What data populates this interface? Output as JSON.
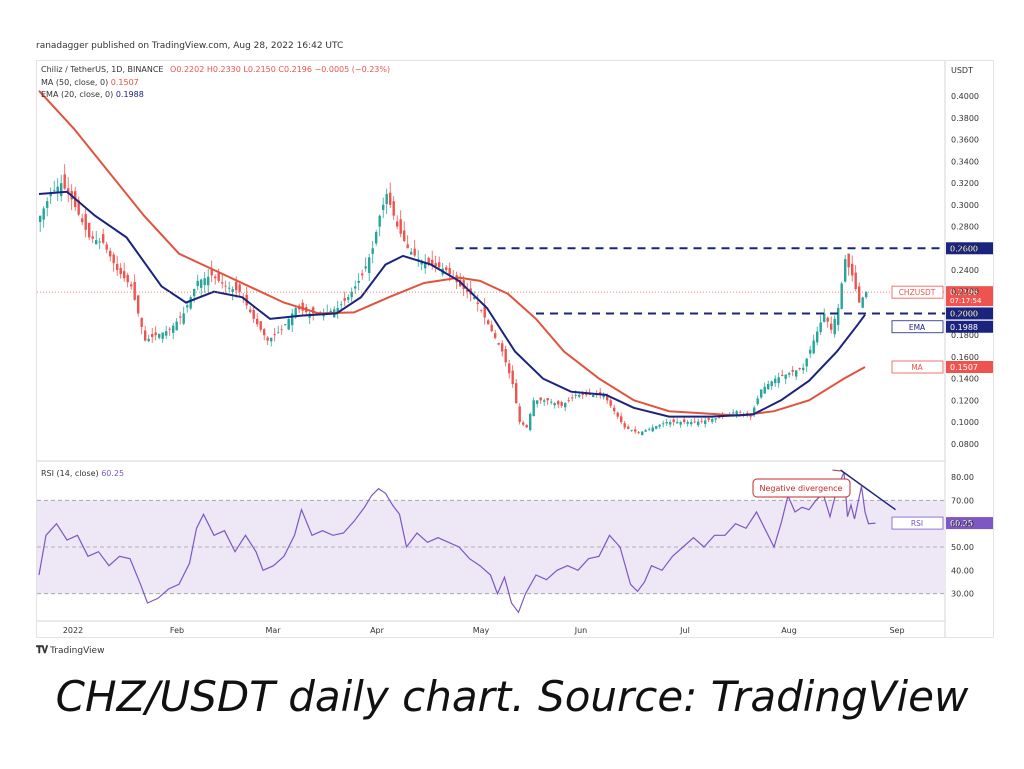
{
  "header_text": "ranadagger published on TradingView.com, Aug 28, 2022 16:42 UTC",
  "legend": {
    "symbol_line": "Chiliz / TetherUS, 1D, BINANCE",
    "ohlc": "O0.2202  H0.2330  L0.2150  C0.2196  −0.0005 (−0.23%)",
    "ma_label": "MA (50, close, 0)",
    "ma_value": "0.1507",
    "ema_label": "EMA (20, close, 0)",
    "ema_value": "0.1988",
    "rsi_label": "RSI (14, close)",
    "rsi_value": "60.25"
  },
  "price_badges": {
    "symbol": "CHZUSDT",
    "last": "0.2196",
    "countdown": "07:17:54",
    "resistance": "0.2600",
    "support": "0.2000",
    "ema_tag": "EMA",
    "ema": "0.1988",
    "ma_tag": "MA",
    "ma": "0.1507",
    "rsi_tag": "RSI",
    "rsi": "60.25"
  },
  "annotation": "Negative divergence",
  "tv_logo": "TradingView",
  "caption": "CHZ/USDT daily chart. Source: TradingView",
  "colors": {
    "up": "#26a69a",
    "down": "#ef5350",
    "ma": "#e0533d",
    "ema": "#1a237e",
    "rsi": "#7e57c2",
    "line": "#1a237e"
  },
  "chart_data": {
    "type": "candlestick",
    "price_axis": {
      "label": "USDT",
      "ticks": [
        "0.4000",
        "0.3800",
        "0.3600",
        "0.3400",
        "0.3200",
        "0.3000",
        "0.2800",
        "0.2600",
        "0.2400",
        "0.2200",
        "0.2000",
        "0.1800",
        "0.1600",
        "0.1400",
        "0.1200",
        "0.1000",
        "0.0800"
      ],
      "range": [
        0.066,
        0.414
      ]
    },
    "rsi_axis": {
      "ticks": [
        "80.00",
        "70.00",
        "60.00",
        "50.00",
        "40.00",
        "30.00"
      ],
      "range": [
        20,
        86
      ],
      "band": [
        30,
        70
      ]
    },
    "x_labels": [
      "2022",
      "Feb",
      "Mar",
      "Apr",
      "May",
      "Jun",
      "Jul",
      "Aug",
      "Sep"
    ],
    "horizontal_levels": [
      {
        "price": 0.26,
        "from_day": 119,
        "to_day": 235
      },
      {
        "price": 0.2,
        "from_day": 142,
        "to_day": 235
      }
    ],
    "rsi_trendline": {
      "from": [
        229,
        83
      ],
      "to": [
        239,
        66
      ]
    },
    "close": [
      {
        "d": 0,
        "p": 0.29
      },
      {
        "d": 3,
        "p": 0.31
      },
      {
        "d": 6,
        "p": 0.32
      },
      {
        "d": 9,
        "p": 0.305
      },
      {
        "d": 14,
        "p": 0.27
      },
      {
        "d": 18,
        "p": 0.265
      },
      {
        "d": 22,
        "p": 0.24
      },
      {
        "d": 26,
        "p": 0.225
      },
      {
        "d": 30,
        "p": 0.175
      },
      {
        "d": 33,
        "p": 0.18
      },
      {
        "d": 37,
        "p": 0.185
      },
      {
        "d": 41,
        "p": 0.2
      },
      {
        "d": 45,
        "p": 0.23
      },
      {
        "d": 49,
        "p": 0.235
      },
      {
        "d": 53,
        "p": 0.225
      },
      {
        "d": 57,
        "p": 0.22
      },
      {
        "d": 61,
        "p": 0.195
      },
      {
        "d": 65,
        "p": 0.175
      },
      {
        "d": 69,
        "p": 0.185
      },
      {
        "d": 73,
        "p": 0.205
      },
      {
        "d": 77,
        "p": 0.2
      },
      {
        "d": 81,
        "p": 0.2
      },
      {
        "d": 85,
        "p": 0.205
      },
      {
        "d": 88,
        "p": 0.215
      },
      {
        "d": 92,
        "p": 0.235
      },
      {
        "d": 95,
        "p": 0.26
      },
      {
        "d": 97,
        "p": 0.29
      },
      {
        "d": 99,
        "p": 0.31
      },
      {
        "d": 102,
        "p": 0.28
      },
      {
        "d": 105,
        "p": 0.26
      },
      {
        "d": 108,
        "p": 0.25
      },
      {
        "d": 112,
        "p": 0.245
      },
      {
        "d": 116,
        "p": 0.24
      },
      {
        "d": 120,
        "p": 0.225
      },
      {
        "d": 124,
        "p": 0.215
      },
      {
        "d": 128,
        "p": 0.19
      },
      {
        "d": 132,
        "p": 0.165
      },
      {
        "d": 135,
        "p": 0.135
      },
      {
        "d": 137,
        "p": 0.1
      },
      {
        "d": 139,
        "p": 0.095
      },
      {
        "d": 141,
        "p": 0.12
      },
      {
        "d": 145,
        "p": 0.12
      },
      {
        "d": 149,
        "p": 0.115
      },
      {
        "d": 153,
        "p": 0.125
      },
      {
        "d": 157,
        "p": 0.125
      },
      {
        "d": 161,
        "p": 0.125
      },
      {
        "d": 164,
        "p": 0.11
      },
      {
        "d": 167,
        "p": 0.095
      },
      {
        "d": 171,
        "p": 0.09
      },
      {
        "d": 175,
        "p": 0.095
      },
      {
        "d": 179,
        "p": 0.1
      },
      {
        "d": 183,
        "p": 0.1
      },
      {
        "d": 187,
        "p": 0.1
      },
      {
        "d": 191,
        "p": 0.102
      },
      {
        "d": 195,
        "p": 0.105
      },
      {
        "d": 199,
        "p": 0.11
      },
      {
        "d": 203,
        "p": 0.105
      },
      {
        "d": 206,
        "p": 0.13
      },
      {
        "d": 210,
        "p": 0.14
      },
      {
        "d": 214,
        "p": 0.145
      },
      {
        "d": 218,
        "p": 0.15
      },
      {
        "d": 221,
        "p": 0.175
      },
      {
        "d": 224,
        "p": 0.2
      },
      {
        "d": 226,
        "p": 0.185
      },
      {
        "d": 228,
        "p": 0.205
      },
      {
        "d": 230,
        "p": 0.25
      },
      {
        "d": 232,
        "p": 0.235
      },
      {
        "d": 234,
        "p": 0.21
      },
      {
        "d": 236,
        "p": 0.2196
      }
    ],
    "ema20": [
      {
        "d": 0,
        "p": 0.31
      },
      {
        "d": 8,
        "p": 0.312
      },
      {
        "d": 16,
        "p": 0.29
      },
      {
        "d": 25,
        "p": 0.27
      },
      {
        "d": 35,
        "p": 0.225
      },
      {
        "d": 42,
        "p": 0.21
      },
      {
        "d": 50,
        "p": 0.22
      },
      {
        "d": 58,
        "p": 0.215
      },
      {
        "d": 66,
        "p": 0.195
      },
      {
        "d": 75,
        "p": 0.198
      },
      {
        "d": 85,
        "p": 0.2
      },
      {
        "d": 92,
        "p": 0.215
      },
      {
        "d": 99,
        "p": 0.245
      },
      {
        "d": 104,
        "p": 0.253
      },
      {
        "d": 112,
        "p": 0.245
      },
      {
        "d": 120,
        "p": 0.23
      },
      {
        "d": 128,
        "p": 0.205
      },
      {
        "d": 136,
        "p": 0.165
      },
      {
        "d": 144,
        "p": 0.14
      },
      {
        "d": 152,
        "p": 0.128
      },
      {
        "d": 162,
        "p": 0.125
      },
      {
        "d": 170,
        "p": 0.113
      },
      {
        "d": 180,
        "p": 0.105
      },
      {
        "d": 192,
        "p": 0.105
      },
      {
        "d": 204,
        "p": 0.107
      },
      {
        "d": 212,
        "p": 0.12
      },
      {
        "d": 220,
        "p": 0.138
      },
      {
        "d": 228,
        "p": 0.165
      },
      {
        "d": 234,
        "p": 0.19
      },
      {
        "d": 236,
        "p": 0.1988
      }
    ],
    "ma50": [
      {
        "d": 0,
        "p": 0.405
      },
      {
        "d": 10,
        "p": 0.37
      },
      {
        "d": 20,
        "p": 0.33
      },
      {
        "d": 30,
        "p": 0.29
      },
      {
        "d": 40,
        "p": 0.255
      },
      {
        "d": 50,
        "p": 0.24
      },
      {
        "d": 60,
        "p": 0.225
      },
      {
        "d": 70,
        "p": 0.21
      },
      {
        "d": 80,
        "p": 0.2
      },
      {
        "d": 90,
        "p": 0.201
      },
      {
        "d": 100,
        "p": 0.215
      },
      {
        "d": 110,
        "p": 0.228
      },
      {
        "d": 120,
        "p": 0.233
      },
      {
        "d": 126,
        "p": 0.23
      },
      {
        "d": 134,
        "p": 0.218
      },
      {
        "d": 142,
        "p": 0.195
      },
      {
        "d": 150,
        "p": 0.165
      },
      {
        "d": 160,
        "p": 0.14
      },
      {
        "d": 170,
        "p": 0.12
      },
      {
        "d": 180,
        "p": 0.11
      },
      {
        "d": 190,
        "p": 0.108
      },
      {
        "d": 200,
        "p": 0.106
      },
      {
        "d": 210,
        "p": 0.11
      },
      {
        "d": 220,
        "p": 0.12
      },
      {
        "d": 230,
        "p": 0.14
      },
      {
        "d": 236,
        "p": 0.1507
      }
    ],
    "rsi": [
      {
        "d": 0,
        "p": 38
      },
      {
        "d": 2,
        "p": 55
      },
      {
        "d": 5,
        "p": 60
      },
      {
        "d": 8,
        "p": 53
      },
      {
        "d": 11,
        "p": 55
      },
      {
        "d": 14,
        "p": 46
      },
      {
        "d": 17,
        "p": 48
      },
      {
        "d": 20,
        "p": 42
      },
      {
        "d": 23,
        "p": 46
      },
      {
        "d": 26,
        "p": 45
      },
      {
        "d": 29,
        "p": 34
      },
      {
        "d": 31,
        "p": 26
      },
      {
        "d": 34,
        "p": 28
      },
      {
        "d": 37,
        "p": 32
      },
      {
        "d": 40,
        "p": 34
      },
      {
        "d": 43,
        "p": 43
      },
      {
        "d": 45,
        "p": 58
      },
      {
        "d": 47,
        "p": 64
      },
      {
        "d": 50,
        "p": 55
      },
      {
        "d": 53,
        "p": 57
      },
      {
        "d": 56,
        "p": 48
      },
      {
        "d": 59,
        "p": 55
      },
      {
        "d": 62,
        "p": 48
      },
      {
        "d": 64,
        "p": 40
      },
      {
        "d": 67,
        "p": 42
      },
      {
        "d": 70,
        "p": 46
      },
      {
        "d": 73,
        "p": 55
      },
      {
        "d": 75,
        "p": 66
      },
      {
        "d": 78,
        "p": 55
      },
      {
        "d": 81,
        "p": 57
      },
      {
        "d": 84,
        "p": 55
      },
      {
        "d": 87,
        "p": 56
      },
      {
        "d": 90,
        "p": 61
      },
      {
        "d": 93,
        "p": 67
      },
      {
        "d": 95,
        "p": 72
      },
      {
        "d": 97,
        "p": 75
      },
      {
        "d": 99,
        "p": 73
      },
      {
        "d": 101,
        "p": 68
      },
      {
        "d": 103,
        "p": 64
      },
      {
        "d": 105,
        "p": 50
      },
      {
        "d": 108,
        "p": 56
      },
      {
        "d": 111,
        "p": 52
      },
      {
        "d": 114,
        "p": 54
      },
      {
        "d": 117,
        "p": 52
      },
      {
        "d": 120,
        "p": 50
      },
      {
        "d": 123,
        "p": 45
      },
      {
        "d": 126,
        "p": 42
      },
      {
        "d": 129,
        "p": 38
      },
      {
        "d": 131,
        "p": 30
      },
      {
        "d": 133,
        "p": 37
      },
      {
        "d": 135,
        "p": 26
      },
      {
        "d": 137,
        "p": 22
      },
      {
        "d": 139,
        "p": 30
      },
      {
        "d": 142,
        "p": 38
      },
      {
        "d": 145,
        "p": 36
      },
      {
        "d": 148,
        "p": 40
      },
      {
        "d": 151,
        "p": 42
      },
      {
        "d": 154,
        "p": 40
      },
      {
        "d": 157,
        "p": 45
      },
      {
        "d": 160,
        "p": 46
      },
      {
        "d": 163,
        "p": 55
      },
      {
        "d": 166,
        "p": 50
      },
      {
        "d": 169,
        "p": 34
      },
      {
        "d": 171,
        "p": 31
      },
      {
        "d": 173,
        "p": 35
      },
      {
        "d": 175,
        "p": 42
      },
      {
        "d": 178,
        "p": 40
      },
      {
        "d": 181,
        "p": 46
      },
      {
        "d": 184,
        "p": 50
      },
      {
        "d": 187,
        "p": 54
      },
      {
        "d": 190,
        "p": 50
      },
      {
        "d": 193,
        "p": 55
      },
      {
        "d": 196,
        "p": 55
      },
      {
        "d": 199,
        "p": 60
      },
      {
        "d": 202,
        "p": 58
      },
      {
        "d": 205,
        "p": 65
      },
      {
        "d": 208,
        "p": 56
      },
      {
        "d": 210,
        "p": 50
      },
      {
        "d": 212,
        "p": 60
      },
      {
        "d": 214,
        "p": 72
      },
      {
        "d": 216,
        "p": 65
      },
      {
        "d": 218,
        "p": 67
      },
      {
        "d": 220,
        "p": 66
      },
      {
        "d": 222,
        "p": 70
      },
      {
        "d": 224,
        "p": 73
      },
      {
        "d": 226,
        "p": 63
      },
      {
        "d": 228,
        "p": 75
      },
      {
        "d": 230,
        "p": 82
      },
      {
        "d": 231,
        "p": 63
      },
      {
        "d": 232,
        "p": 68
      },
      {
        "d": 233,
        "p": 62
      },
      {
        "d": 235,
        "p": 76
      },
      {
        "d": 236,
        "p": 65
      },
      {
        "d": 237,
        "p": 60
      },
      {
        "d": 239,
        "p": 60.25
      }
    ]
  }
}
